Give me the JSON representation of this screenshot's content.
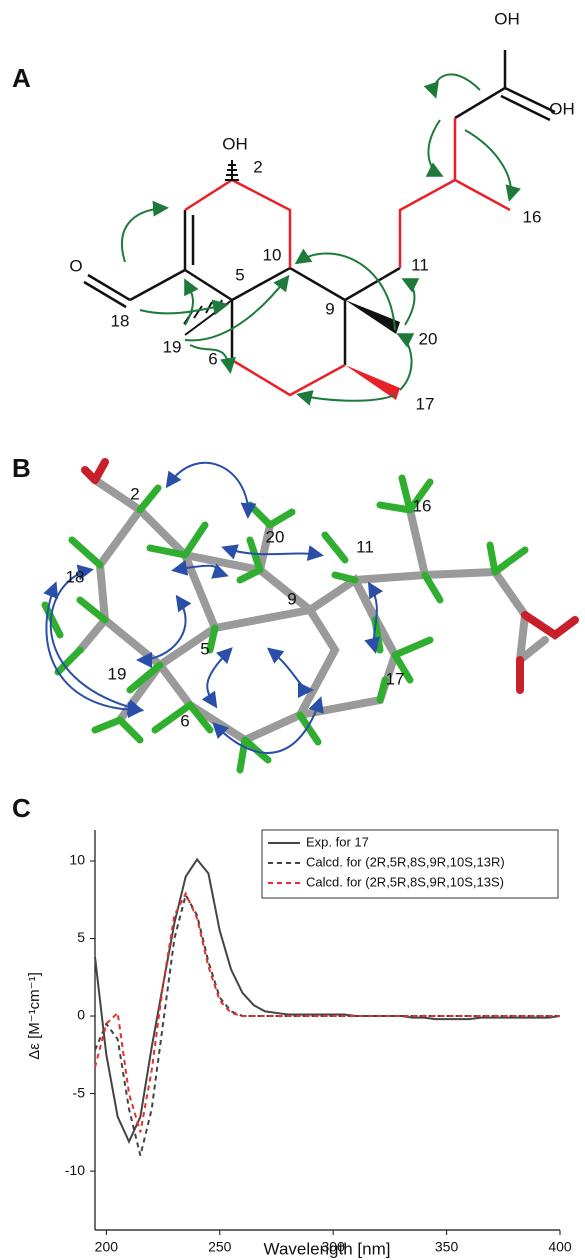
{
  "panels": {
    "a": {
      "label": "A",
      "atoms": [
        "OH",
        "2",
        "OH",
        "OH",
        "O",
        "16",
        "10",
        "11",
        "5",
        "9",
        "20",
        "18",
        "19",
        "6",
        "17"
      ]
    },
    "b": {
      "label": "B",
      "atoms": [
        "2",
        "16",
        "20",
        "11",
        "18",
        "9",
        "5",
        "19",
        "6",
        "17"
      ]
    },
    "c": {
      "label": "C"
    }
  },
  "chart_data": {
    "type": "line",
    "x_label": "Wavelength [nm]",
    "y_label": "Δε [M⁻¹cm⁻¹]",
    "x": [
      195,
      200,
      205,
      210,
      215,
      220,
      225,
      230,
      235,
      240,
      245,
      250,
      255,
      260,
      265,
      270,
      275,
      280,
      285,
      290,
      295,
      300,
      305,
      310,
      315,
      320,
      325,
      330,
      335,
      340,
      345,
      350,
      355,
      360,
      365,
      370,
      375,
      380,
      385,
      390,
      395,
      400
    ],
    "series": [
      {
        "name": "Exp. for 17",
        "color": "#444444",
        "style": "solid",
        "values": [
          3.8,
          -2.5,
          -6.5,
          -8.1,
          -6.5,
          -2,
          2,
          6,
          9,
          10.1,
          9.2,
          5.5,
          3,
          1.5,
          0.7,
          0.3,
          0.2,
          0.1,
          0.1,
          0.1,
          0.1,
          0.1,
          0.1,
          0,
          0,
          0,
          0,
          0,
          -0.1,
          -0.1,
          -0.2,
          -0.2,
          -0.2,
          -0.2,
          -0.1,
          -0.1,
          -0.1,
          -0.1,
          -0.1,
          -0.1,
          -0.1,
          0
        ]
      },
      {
        "name": "Calcd. for (2R,5R,8S,9R,10S,13R)",
        "color": "#444444",
        "style": "dashed",
        "values": [
          -2.2,
          -0.5,
          -1.5,
          -6,
          -9,
          -6,
          -0.5,
          5,
          7.8,
          6.5,
          3.5,
          1.2,
          0.3,
          0,
          0,
          0,
          0,
          0,
          0,
          0,
          0,
          0,
          0,
          0,
          0,
          0,
          0,
          0,
          0,
          0,
          0,
          0,
          0,
          0,
          0,
          0,
          0,
          0,
          0,
          0,
          0,
          0
        ]
      },
      {
        "name": "Calcd. for (2R,5R,8S,9R,10S,13S)",
        "color": "#e8302a",
        "style": "dashed",
        "values": [
          -3.3,
          -0.5,
          0.2,
          -5,
          -7.5,
          -3.5,
          2,
          6.5,
          7.9,
          6.3,
          3.2,
          1,
          0.2,
          0,
          0,
          0,
          0,
          0,
          0,
          0,
          0,
          0,
          0,
          0,
          0,
          0,
          0,
          0,
          0,
          0,
          0,
          0,
          0,
          0,
          0,
          0,
          0,
          0,
          0,
          0,
          0,
          0
        ]
      }
    ],
    "xlim": [
      195,
      400
    ],
    "xticks": [
      200,
      250,
      300,
      350,
      400
    ],
    "ylim": [
      -13.8,
      12
    ],
    "yticks": [
      -10,
      -5,
      0,
      5,
      10
    ],
    "legend": "top-right"
  }
}
